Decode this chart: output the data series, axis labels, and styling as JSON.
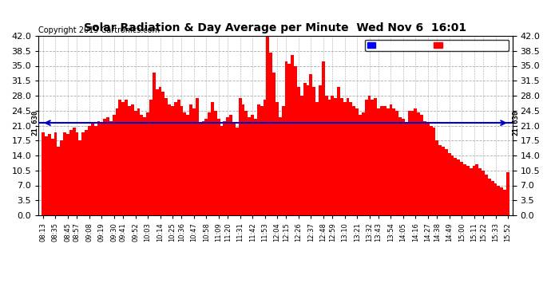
{
  "title": "Solar Radiation & Day Average per Minute  Wed Nov 6  16:01",
  "copyright": "Copyright 2019 Cartronics.com",
  "median_value": 21.63,
  "median_label": "21.630",
  "ylim": [
    0,
    42.0
  ],
  "yticks": [
    0.0,
    3.5,
    7.0,
    10.5,
    14.0,
    17.5,
    21.0,
    24.5,
    28.0,
    31.5,
    35.0,
    38.5,
    42.0
  ],
  "bar_color": "#FF0000",
  "median_color": "#0000CC",
  "background_color": "#FFFFFF",
  "grid_color": "#AAAAAA",
  "legend_median_bg": "#0000FF",
  "legend_radiation_bg": "#FF0000",
  "x_labels": [
    "08:13",
    "08:35",
    "08:45",
    "08:57",
    "09:08",
    "09:19",
    "09:30",
    "09:41",
    "09:52",
    "10:03",
    "10:14",
    "10:25",
    "10:36",
    "10:47",
    "10:58",
    "11:09",
    "11:20",
    "11:31",
    "11:42",
    "11:53",
    "12:04",
    "12:15",
    "12:26",
    "12:37",
    "12:48",
    "12:59",
    "13:10",
    "13:21",
    "13:32",
    "13:43",
    "13:54",
    "14:05",
    "14:16",
    "14:27",
    "14:38",
    "14:49",
    "15:00",
    "15:11",
    "15:22",
    "15:33",
    "15:52"
  ],
  "bar_heights": [
    19.5,
    18.5,
    19.0,
    18.0,
    19.5,
    16.0,
    17.5,
    19.5,
    19.0,
    20.0,
    20.5,
    19.5,
    17.5,
    19.5,
    20.0,
    21.0,
    21.5,
    21.0,
    22.0,
    21.5,
    22.5,
    23.0,
    22.0,
    23.5,
    25.0,
    27.0,
    26.5,
    27.0,
    25.5,
    26.0,
    24.5,
    25.0,
    23.5,
    23.0,
    24.0,
    27.0,
    33.5,
    29.5,
    30.0,
    29.0,
    27.5,
    26.0,
    25.5,
    26.5,
    27.0,
    25.5,
    24.0,
    23.5,
    26.0,
    25.0,
    27.5,
    21.5,
    22.0,
    22.5,
    24.0,
    26.5,
    24.5,
    22.5,
    21.0,
    22.0,
    23.0,
    23.5,
    21.5,
    20.5,
    27.5,
    26.0,
    24.5,
    23.0,
    23.5,
    22.5,
    26.0,
    25.5,
    27.0,
    43.0,
    38.0,
    33.5,
    26.5,
    23.0,
    25.5,
    36.0,
    35.5,
    37.5,
    35.0,
    30.0,
    28.0,
    31.0,
    30.5,
    33.0,
    30.0,
    26.5,
    30.5,
    36.0,
    28.0,
    27.0,
    28.0,
    27.5,
    30.0,
    27.5,
    26.5,
    27.5,
    26.5,
    25.5,
    25.0,
    23.5,
    24.0,
    27.0,
    28.0,
    27.0,
    27.5,
    25.0,
    25.5,
    25.5,
    25.0,
    26.0,
    25.0,
    24.5,
    23.0,
    22.5,
    21.5,
    24.5,
    24.5,
    25.0,
    24.0,
    23.5,
    22.0,
    21.5,
    21.0,
    20.5,
    17.5,
    16.5,
    16.0,
    15.5,
    14.5,
    14.0,
    13.5,
    13.0,
    12.5,
    12.0,
    11.5,
    11.0,
    11.5,
    12.0,
    11.0,
    10.5,
    9.5,
    8.5,
    8.0,
    7.5,
    7.0,
    6.5,
    6.0,
    10.0
  ],
  "title_fontsize": 10,
  "copyright_fontsize": 7,
  "ytick_fontsize": 8,
  "xtick_fontsize": 6
}
